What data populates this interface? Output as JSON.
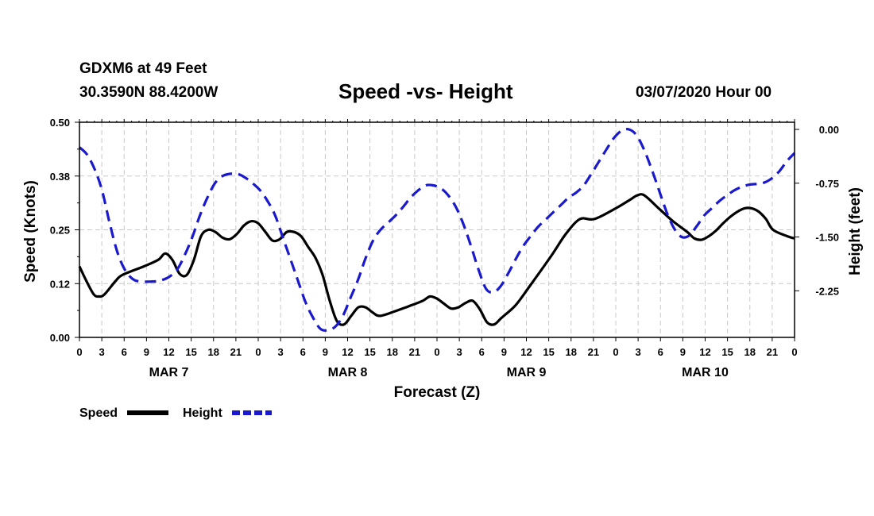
{
  "header": {
    "station": "GDXM6 at 49 Feet",
    "coords": "30.3590N 88.4200W",
    "title": "Speed -vs- Height",
    "runtime": "03/07/2020 Hour 00"
  },
  "chart_data": {
    "type": "line",
    "title": "Speed -vs- Height",
    "xlabel": "Forecast (Z)",
    "ylabel_left": "Speed (Knots)",
    "ylabel_right": "Height (feet)",
    "x_unit": "hours from 03/07/2020 00Z",
    "xlim": [
      0,
      96
    ],
    "ylim_left": [
      0.0,
      0.5
    ],
    "ylim_right": [
      -2.9,
      0.1
    ],
    "left_ticks": [
      {
        "v": 0.0,
        "label": "0.00"
      },
      {
        "v": 0.125,
        "label": "0.12"
      },
      {
        "v": 0.25,
        "label": "0.25"
      },
      {
        "v": 0.375,
        "label": "0.38"
      },
      {
        "v": 0.5,
        "label": "0.50"
      }
    ],
    "right_ticks": [
      {
        "v": 0.0,
        "label": "0.00"
      },
      {
        "v": -0.75,
        "label": "-0.75"
      },
      {
        "v": -1.5,
        "label": "-1.50"
      },
      {
        "v": -2.25,
        "label": "-2.25"
      }
    ],
    "x_tick_labels": [
      "0",
      "3",
      "6",
      "9",
      "12",
      "15",
      "18",
      "21",
      "0",
      "3",
      "6",
      "9",
      "12",
      "15",
      "18",
      "21",
      "0",
      "3",
      "6",
      "9",
      "12",
      "15",
      "18",
      "21",
      "0",
      "3",
      "6",
      "9",
      "12",
      "15",
      "18",
      "21",
      "0"
    ],
    "day_labels": [
      {
        "x": 12,
        "label": "MAR 7"
      },
      {
        "x": 36,
        "label": "MAR 8"
      },
      {
        "x": 60,
        "label": "MAR 9"
      },
      {
        "x": 84,
        "label": "MAR 10"
      }
    ],
    "grid": true,
    "legend_position": "bottom-left",
    "series": [
      {
        "name": "Speed",
        "axis": "left",
        "color": "#000000",
        "dash": "solid",
        "points": [
          [
            0,
            0.165
          ],
          [
            1,
            0.13
          ],
          [
            2,
            0.1
          ],
          [
            2.7,
            0.095
          ],
          [
            3.5,
            0.1
          ],
          [
            5,
            0.13
          ],
          [
            6,
            0.145
          ],
          [
            9,
            0.165
          ],
          [
            11,
            0.18
          ],
          [
            12,
            0.195
          ],
          [
            13,
            0.18
          ],
          [
            14,
            0.148
          ],
          [
            15,
            0.145
          ],
          [
            16,
            0.18
          ],
          [
            17,
            0.235
          ],
          [
            18,
            0.25
          ],
          [
            19,
            0.245
          ],
          [
            20,
            0.232
          ],
          [
            21,
            0.228
          ],
          [
            22,
            0.24
          ],
          [
            23,
            0.26
          ],
          [
            24,
            0.27
          ],
          [
            25,
            0.265
          ],
          [
            26,
            0.245
          ],
          [
            27,
            0.225
          ],
          [
            28,
            0.228
          ],
          [
            29,
            0.245
          ],
          [
            30,
            0.245
          ],
          [
            31,
            0.235
          ],
          [
            32,
            0.21
          ],
          [
            33,
            0.185
          ],
          [
            34,
            0.145
          ],
          [
            35,
            0.085
          ],
          [
            36,
            0.038
          ],
          [
            37,
            0.03
          ],
          [
            38,
            0.05
          ],
          [
            39,
            0.07
          ],
          [
            40,
            0.07
          ],
          [
            41,
            0.058
          ],
          [
            42,
            0.05
          ],
          [
            44,
            0.06
          ],
          [
            46,
            0.072
          ],
          [
            48,
            0.085
          ],
          [
            49,
            0.095
          ],
          [
            50,
            0.09
          ],
          [
            51,
            0.078
          ],
          [
            52,
            0.067
          ],
          [
            53,
            0.07
          ],
          [
            54,
            0.08
          ],
          [
            55,
            0.085
          ],
          [
            56,
            0.065
          ],
          [
            57,
            0.035
          ],
          [
            58,
            0.03
          ],
          [
            59,
            0.045
          ],
          [
            61,
            0.075
          ],
          [
            63,
            0.12
          ],
          [
            66,
            0.19
          ],
          [
            68,
            0.24
          ],
          [
            70,
            0.275
          ],
          [
            72,
            0.275
          ],
          [
            75,
            0.3
          ],
          [
            77,
            0.32
          ],
          [
            78,
            0.33
          ],
          [
            79,
            0.33
          ],
          [
            81,
            0.3
          ],
          [
            83,
            0.27
          ],
          [
            85,
            0.245
          ],
          [
            86,
            0.23
          ],
          [
            87,
            0.227
          ],
          [
            88,
            0.235
          ],
          [
            89,
            0.248
          ],
          [
            90,
            0.265
          ],
          [
            91,
            0.28
          ],
          [
            92,
            0.292
          ],
          [
            93,
            0.3
          ],
          [
            94,
            0.3
          ],
          [
            95,
            0.292
          ],
          [
            96,
            0.275
          ],
          [
            97,
            0.25
          ],
          [
            99,
            0.235
          ],
          [
            100,
            0.23
          ]
        ],
        "x_scale_note": "x values are sampled on a 0-100 grid spanning 0Z Mar 7 to 0Z Mar 11"
      },
      {
        "name": "Height",
        "axis": "right",
        "color": "#1a1acc",
        "dash": "dashed",
        "points": [
          [
            0,
            -0.25
          ],
          [
            1,
            -0.35
          ],
          [
            2,
            -0.55
          ],
          [
            3,
            -0.85
          ],
          [
            4,
            -1.3
          ],
          [
            5,
            -1.7
          ],
          [
            6,
            -1.95
          ],
          [
            7,
            -2.08
          ],
          [
            8,
            -2.12
          ],
          [
            10,
            -2.12
          ],
          [
            11,
            -2.1
          ],
          [
            12,
            -2.05
          ],
          [
            13,
            -1.95
          ],
          [
            14,
            -1.75
          ],
          [
            15,
            -1.5
          ],
          [
            16,
            -1.2
          ],
          [
            17,
            -0.95
          ],
          [
            18,
            -0.75
          ],
          [
            19,
            -0.65
          ],
          [
            20,
            -0.62
          ],
          [
            21,
            -0.62
          ],
          [
            22,
            -0.67
          ],
          [
            23,
            -0.75
          ],
          [
            24,
            -0.85
          ],
          [
            25,
            -1.0
          ],
          [
            26,
            -1.2
          ],
          [
            27,
            -1.5
          ],
          [
            28,
            -1.8
          ],
          [
            29,
            -2.1
          ],
          [
            30,
            -2.4
          ],
          [
            31,
            -2.62
          ],
          [
            32,
            -2.78
          ],
          [
            33,
            -2.8
          ],
          [
            34,
            -2.75
          ],
          [
            35,
            -2.6
          ],
          [
            36,
            -2.35
          ],
          [
            37,
            -2.1
          ],
          [
            38,
            -1.8
          ],
          [
            39,
            -1.55
          ],
          [
            40,
            -1.4
          ],
          [
            41,
            -1.3
          ],
          [
            42,
            -1.2
          ],
          [
            43,
            -1.08
          ],
          [
            44,
            -0.95
          ],
          [
            45,
            -0.85
          ],
          [
            46,
            -0.78
          ],
          [
            47,
            -0.78
          ],
          [
            48,
            -0.82
          ],
          [
            49,
            -0.92
          ],
          [
            50,
            -1.08
          ],
          [
            51,
            -1.32
          ],
          [
            52,
            -1.62
          ],
          [
            53,
            -1.95
          ],
          [
            54,
            -2.22
          ],
          [
            55,
            -2.27
          ],
          [
            56,
            -2.18
          ],
          [
            57,
            -2.0
          ],
          [
            58,
            -1.8
          ],
          [
            59,
            -1.62
          ],
          [
            60,
            -1.48
          ],
          [
            61,
            -1.35
          ],
          [
            62,
            -1.25
          ],
          [
            63,
            -1.15
          ],
          [
            64,
            -1.05
          ],
          [
            65,
            -0.95
          ],
          [
            66,
            -0.88
          ],
          [
            67,
            -0.78
          ],
          [
            68,
            -0.62
          ],
          [
            69,
            -0.45
          ],
          [
            70,
            -0.28
          ],
          [
            71,
            -0.12
          ],
          [
            72,
            -0.02
          ],
          [
            73,
            -0.0
          ],
          [
            74,
            -0.08
          ],
          [
            75,
            -0.28
          ],
          [
            76,
            -0.55
          ],
          [
            77,
            -0.85
          ],
          [
            78,
            -1.15
          ],
          [
            79,
            -1.38
          ],
          [
            80,
            -1.5
          ],
          [
            81,
            -1.48
          ],
          [
            82,
            -1.35
          ],
          [
            83,
            -1.2
          ],
          [
            84,
            -1.1
          ],
          [
            85,
            -1.0
          ],
          [
            86,
            -0.92
          ],
          [
            87,
            -0.85
          ],
          [
            88,
            -0.8
          ],
          [
            89,
            -0.77
          ],
          [
            90,
            -0.76
          ],
          [
            91,
            -0.74
          ],
          [
            92,
            -0.68
          ],
          [
            93,
            -0.58
          ],
          [
            94,
            -0.44
          ],
          [
            95,
            -0.33
          ]
        ],
        "x_scale_note": "x values are sampled on a 0-95 grid spanning 0Z Mar 7 to 0Z Mar 11"
      }
    ]
  },
  "legend": {
    "speed_label": "Speed",
    "height_label": "Height"
  }
}
